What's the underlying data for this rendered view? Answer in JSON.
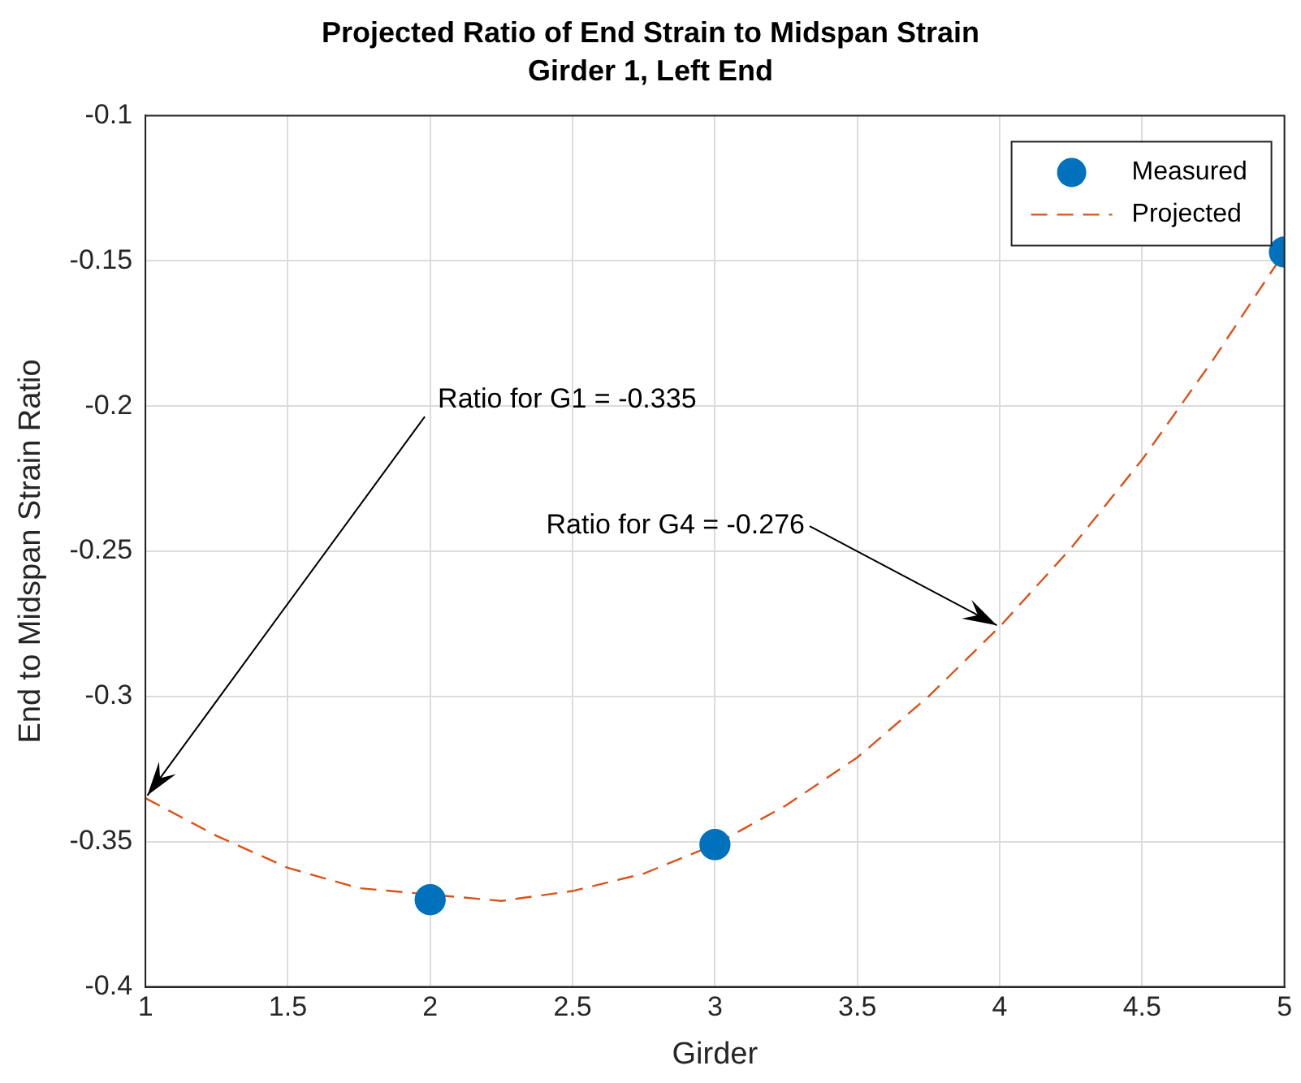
{
  "chart_data": {
    "type": "line",
    "title": "Projected Ratio of End Strain to Midspan Strain",
    "subtitle": "Girder 1, Left End",
    "xlabel": "Girder",
    "ylabel": "End to Midspan Strain Ratio",
    "xlim": [
      1,
      5
    ],
    "xticks": [
      1,
      1.5,
      2,
      2.5,
      3,
      3.5,
      4,
      4.5,
      5
    ],
    "ylim": [
      -0.4,
      -0.1
    ],
    "yticks": [
      -0.4,
      -0.35,
      -0.3,
      -0.25,
      -0.2,
      -0.15,
      -0.1
    ],
    "grid": true,
    "legend": "top right",
    "series": [
      {
        "name": "Measured",
        "type": "scatter",
        "marker": "circle",
        "color": "#0072bd",
        "x": [
          2,
          3,
          5
        ],
        "values": [
          -0.37,
          -0.351,
          -0.147
        ]
      },
      {
        "name": "Projected",
        "type": "line",
        "marker": "none",
        "line_style": "dashed",
        "color": "#d95319",
        "x": [
          1,
          1.25,
          1.5,
          1.75,
          2.25,
          2.5,
          2.75,
          3,
          3.25,
          3.5,
          3.75,
          4,
          4.25,
          4.5,
          4.75,
          5
        ],
        "values": [
          -0.335,
          -0.348,
          -0.359,
          -0.366,
          -0.3704,
          -0.367,
          -0.361,
          -0.351,
          -0.3375,
          -0.321,
          -0.3,
          -0.276,
          -0.249,
          -0.2185,
          -0.184,
          -0.147
        ]
      }
    ],
    "annotations": [
      {
        "text": "Ratio for G1 = -0.335",
        "x": 1,
        "y": -0.335
      },
      {
        "text": "Ratio for G4 = -0.276",
        "x": 4,
        "y": -0.276
      }
    ]
  }
}
